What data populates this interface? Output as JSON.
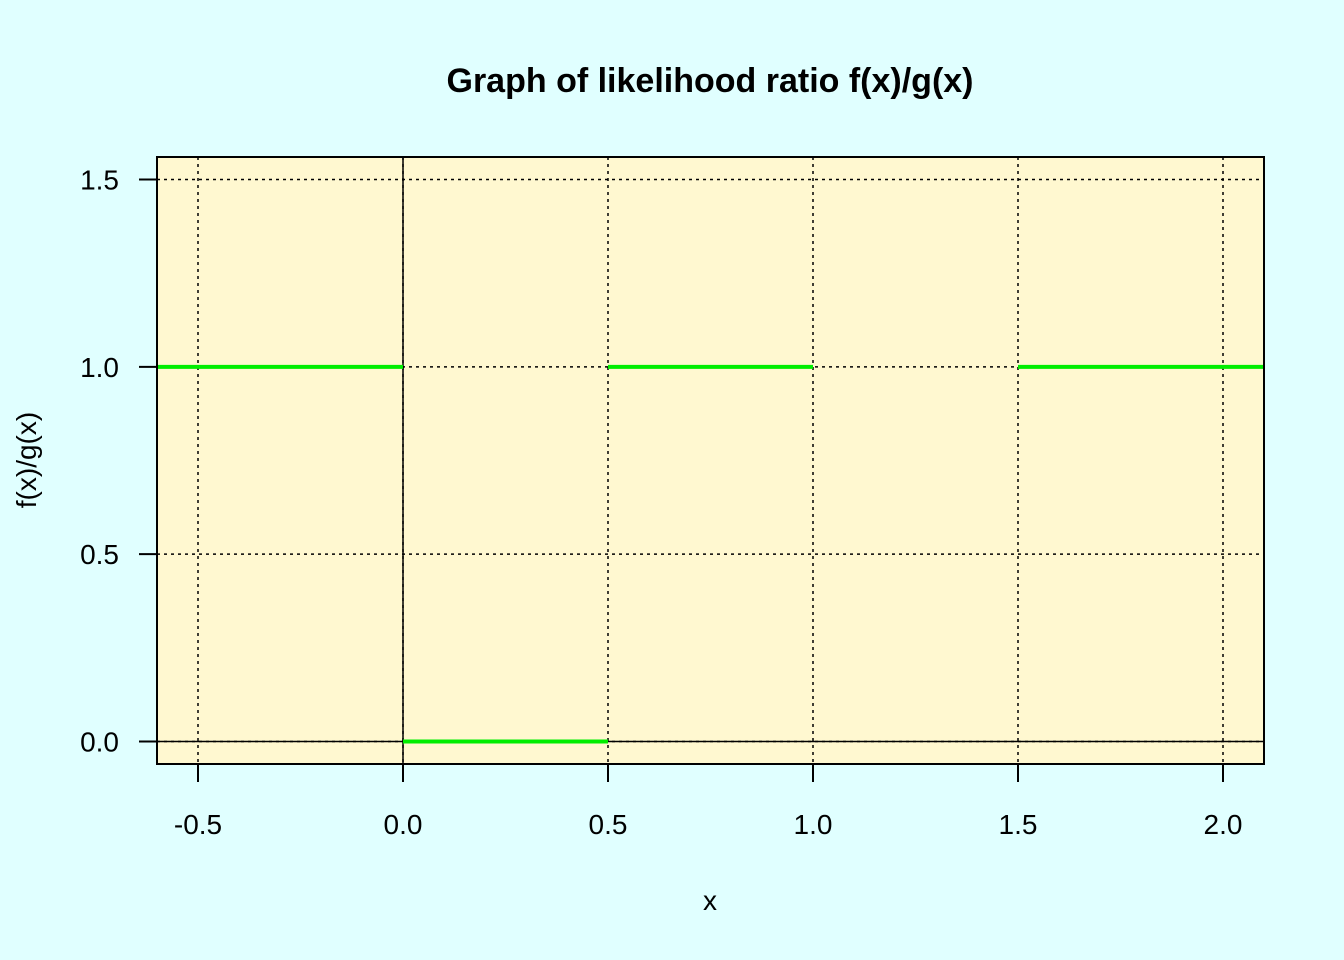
{
  "colors": {
    "page_background": "#e0ffff",
    "plot_background": "#fff8d0",
    "line": "#00ee00",
    "grid": "#000000",
    "axes": "#000000"
  },
  "chart_data": {
    "type": "line",
    "title": "Graph of likelihood ratio f(x)/g(x)",
    "xlabel": "x",
    "ylabel": "f(x)/g(x)",
    "xlim": [
      -0.6,
      2.1
    ],
    "ylim": [
      -0.06,
      1.56
    ],
    "x_ticks": [
      -0.5,
      0.0,
      0.5,
      1.0,
      1.5,
      2.0
    ],
    "x_tick_labels": [
      "-0.5",
      "0.0",
      "0.5",
      "1.0",
      "1.5",
      "2.0"
    ],
    "y_ticks": [
      0.0,
      0.5,
      1.0,
      1.5
    ],
    "y_tick_labels": [
      "0.0",
      "0.5",
      "1.0",
      "1.5"
    ],
    "grid": true,
    "grid_style": "dotted",
    "reference_lines": {
      "vertical_x": 0,
      "horizontal_y": 0
    },
    "series": [
      {
        "segments": [
          {
            "x": [
              -0.6,
              0.0
            ],
            "y": [
              1,
              1
            ]
          },
          {
            "x": [
              0.0,
              0.5
            ],
            "y": [
              0,
              0
            ]
          },
          {
            "x": [
              0.5,
              1.0
            ],
            "y": [
              1,
              1
            ]
          },
          {
            "x": [
              1.5,
              2.1
            ],
            "y": [
              1,
              1
            ]
          }
        ]
      }
    ]
  }
}
